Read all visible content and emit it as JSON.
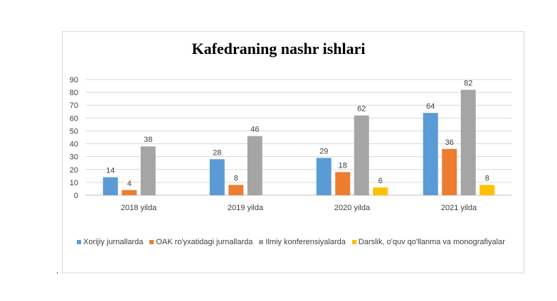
{
  "chart_data": {
    "type": "bar",
    "title": "Kafedraning nashr ishlari",
    "categories": [
      "2018 yilda",
      "2019 yilda",
      "2020 yilda",
      "2021 yilda"
    ],
    "series": [
      {
        "name": "Xorijiy jurnallarda",
        "color": "#5b9bd5",
        "values": [
          14,
          28,
          29,
          64
        ]
      },
      {
        "name": "OAK ro'yxatidagi jurnallarda",
        "color": "#ed7d31",
        "values": [
          4,
          8,
          18,
          36
        ]
      },
      {
        "name": "Ilmiy konferensiyalarda",
        "color": "#a5a5a5",
        "values": [
          38,
          46,
          62,
          82
        ]
      },
      {
        "name": "Darslik, o'quv qo'llanma va monografiyalar",
        "color": "#ffc000",
        "values": [
          null,
          null,
          6,
          8
        ]
      }
    ],
    "y_ticks": [
      0,
      10,
      20,
      30,
      40,
      50,
      60,
      70,
      80,
      90
    ],
    "ylim": [
      0,
      90
    ],
    "grid": true,
    "legend_position": "bottom"
  },
  "bullet_text": "."
}
